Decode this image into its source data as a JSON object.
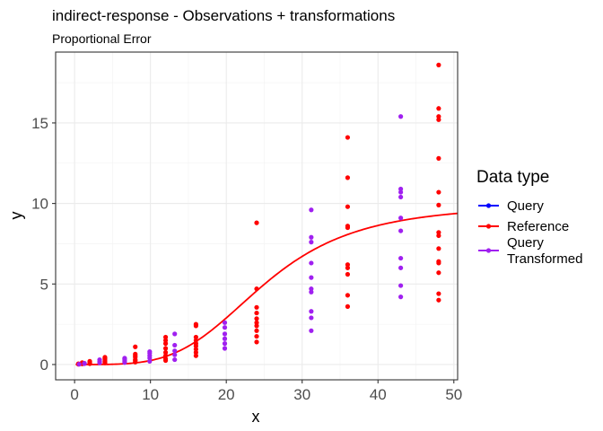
{
  "chart_data": {
    "type": "scatter",
    "title": "indirect-response - Observations + transformations",
    "subtitle": "Proportional Error",
    "xlabel": "x",
    "ylabel": "y",
    "xlim": [
      -2.5,
      50.5
    ],
    "ylim": [
      -0.95,
      19.4
    ],
    "x_ticks": [
      0,
      10,
      20,
      30,
      40,
      50
    ],
    "y_ticks": [
      0,
      5,
      10,
      15
    ],
    "grid": true,
    "legend": {
      "title": "Data type",
      "placement": "right",
      "entries": [
        {
          "label": "Query",
          "color": "#0000ff"
        },
        {
          "label": "Reference",
          "color": "#ff0000"
        },
        {
          "label": "Query Transformed",
          "color": "#a020f0"
        }
      ]
    },
    "series": [
      {
        "name": "Reference",
        "color": "#ff0000",
        "points": [
          [
            0.5,
            0.03
          ],
          [
            0.5,
            0.05
          ],
          [
            0.5,
            0.02
          ],
          [
            1,
            0.06
          ],
          [
            1,
            0.1
          ],
          [
            1,
            0.04
          ],
          [
            1,
            0.12
          ],
          [
            2,
            0.08
          ],
          [
            2,
            0.15
          ],
          [
            2,
            0.05
          ],
          [
            2,
            0.2
          ],
          [
            4,
            0.15
          ],
          [
            4,
            0.28
          ],
          [
            4,
            0.35
          ],
          [
            4,
            0.2
          ],
          [
            4,
            0.1
          ],
          [
            4,
            0.4
          ],
          [
            4,
            0.45
          ],
          [
            8,
            0.25
          ],
          [
            8,
            0.45
          ],
          [
            8,
            0.55
          ],
          [
            8,
            0.3
          ],
          [
            8,
            0.15
          ],
          [
            8,
            0.65
          ],
          [
            8,
            1.1
          ],
          [
            12,
            0.35
          ],
          [
            12,
            0.55
          ],
          [
            12,
            0.75
          ],
          [
            12,
            1.0
          ],
          [
            12,
            1.3
          ],
          [
            12,
            1.5
          ],
          [
            12,
            1.7
          ],
          [
            12,
            0.25
          ],
          [
            16,
            0.55
          ],
          [
            16,
            0.75
          ],
          [
            16,
            0.95
          ],
          [
            16,
            1.15
          ],
          [
            16,
            1.3
          ],
          [
            16,
            1.5
          ],
          [
            16,
            1.7
          ],
          [
            16,
            2.4
          ],
          [
            16,
            2.5
          ],
          [
            24,
            1.4
          ],
          [
            24,
            1.75
          ],
          [
            24,
            2.1
          ],
          [
            24,
            2.4
          ],
          [
            24,
            2.6
          ],
          [
            24,
            2.85
          ],
          [
            24,
            3.2
          ],
          [
            24,
            3.55
          ],
          [
            24,
            4.7
          ],
          [
            24,
            8.8
          ],
          [
            36,
            3.6
          ],
          [
            36,
            4.3
          ],
          [
            36,
            5.6
          ],
          [
            36,
            6.0
          ],
          [
            36,
            6.2
          ],
          [
            36,
            8.5
          ],
          [
            36,
            8.6
          ],
          [
            36,
            9.8
          ],
          [
            36,
            11.6
          ],
          [
            36,
            14.1
          ],
          [
            48,
            4.0
          ],
          [
            48,
            4.4
          ],
          [
            48,
            5.7
          ],
          [
            48,
            6.3
          ],
          [
            48,
            6.4
          ],
          [
            48,
            7.2
          ],
          [
            48,
            8.0
          ],
          [
            48,
            8.2
          ],
          [
            48,
            9.9
          ],
          [
            48,
            10.7
          ],
          [
            48,
            12.8
          ],
          [
            48,
            15.2
          ],
          [
            48,
            15.4
          ],
          [
            48,
            15.9
          ],
          [
            48,
            18.6
          ]
        ]
      },
      {
        "name": "Query Transformed",
        "color": "#a020f0",
        "points": [
          [
            0.6,
            0.02
          ],
          [
            1.3,
            0.05
          ],
          [
            1.3,
            0.08
          ],
          [
            3.3,
            0.1
          ],
          [
            3.3,
            0.18
          ],
          [
            3.3,
            0.3
          ],
          [
            6.6,
            0.12
          ],
          [
            6.6,
            0.2
          ],
          [
            6.6,
            0.28
          ],
          [
            6.6,
            0.35
          ],
          [
            6.6,
            0.4
          ],
          [
            9.9,
            0.2
          ],
          [
            9.9,
            0.4
          ],
          [
            9.9,
            0.55
          ],
          [
            9.9,
            0.7
          ],
          [
            9.9,
            0.8
          ],
          [
            13.2,
            0.3
          ],
          [
            13.2,
            0.6
          ],
          [
            13.2,
            0.85
          ],
          [
            13.2,
            1.2
          ],
          [
            13.2,
            1.9
          ],
          [
            19.8,
            1.0
          ],
          [
            19.8,
            1.3
          ],
          [
            19.8,
            1.6
          ],
          [
            19.8,
            1.9
          ],
          [
            19.8,
            2.3
          ],
          [
            19.8,
            2.6
          ],
          [
            31.2,
            2.1
          ],
          [
            31.2,
            2.9
          ],
          [
            31.2,
            3.3
          ],
          [
            31.2,
            4.5
          ],
          [
            31.2,
            4.7
          ],
          [
            31.2,
            5.4
          ],
          [
            31.2,
            6.3
          ],
          [
            31.2,
            7.6
          ],
          [
            31.2,
            7.9
          ],
          [
            31.2,
            9.6
          ],
          [
            43,
            4.2
          ],
          [
            43,
            4.9
          ],
          [
            43,
            6.0
          ],
          [
            43,
            6.6
          ],
          [
            43,
            8.3
          ],
          [
            43,
            9.1
          ],
          [
            43,
            10.4
          ],
          [
            43,
            10.7
          ],
          [
            43,
            10.9
          ],
          [
            43,
            15.4
          ]
        ]
      }
    ],
    "lines": [
      {
        "name": "Reference",
        "color": "#ff0000",
        "curve": {
          "emax": 9.95,
          "ec50": 25,
          "hill": 4
        }
      }
    ]
  }
}
